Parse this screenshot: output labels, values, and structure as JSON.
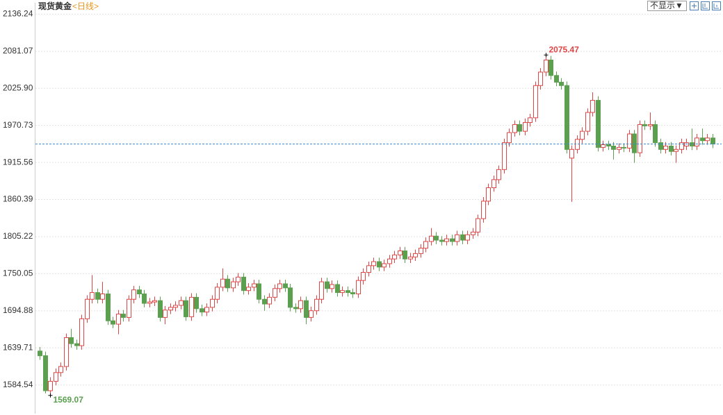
{
  "chart_data": {
    "type": "candlestick",
    "title": "现货黄金",
    "subtitle": "<日线>",
    "button": "不显示▼",
    "ylim": [
      1545,
      2148
    ],
    "yticks": [
      1584.54,
      1639.71,
      1694.88,
      1750.05,
      1805.22,
      1860.39,
      1915.56,
      1970.73,
      {
        "value": 2025.9,
        "label": "2025.90"
      },
      2081.07,
      2136.24
    ],
    "grid": true,
    "up_color": "#e04545",
    "down_color": "#5aa04f",
    "last_price": 1943,
    "annotations": [
      {
        "text": "2075.47",
        "index": 97,
        "value": 2075.47,
        "color": "#e04545"
      },
      {
        "text": "1569.07",
        "index": 2,
        "value": 1569.07,
        "color": "#5aa04f"
      }
    ],
    "open": [
      1635,
      1628,
      1576,
      1590,
      1603,
      1612,
      1655,
      1646,
      1643,
      1683,
      1712,
      1722,
      1712,
      1720,
      1680,
      1675,
      1690,
      1685,
      1712,
      1726,
      1720,
      1706,
      1708,
      1710,
      1685,
      1696,
      1700,
      1703,
      1710,
      1686,
      1715,
      1698,
      1693,
      1700,
      1712,
      1730,
      1742,
      1729,
      1738,
      1745,
      1725,
      1730,
      1735,
      1712,
      1705,
      1715,
      1728,
      1735,
      1729,
      1700,
      1698,
      1710,
      1685,
      1695,
      1712,
      1738,
      1728,
      1734,
      1722,
      1725,
      1722,
      1720,
      1740,
      1752,
      1762,
      1768,
      1760,
      1765,
      1772,
      1778,
      1784,
      1772,
      1775,
      1780,
      1788,
      1798,
      1806,
      1800,
      1798,
      1802,
      1798,
      1808,
      1800,
      1808,
      1812,
      1832,
      1858,
      1878,
      1890,
      1905,
      1945,
      1960,
      1972,
      1962,
      1975,
      1982,
      2030,
      2050,
      2068,
      2045,
      2035,
      2030,
      1922,
      1935,
      1950,
      1962,
      1990,
      2008,
      1938,
      1942,
      1940,
      1935,
      1938,
      1937,
      1958,
      1930,
      1972,
      1970,
      1972,
      1945,
      1935,
      1940,
      1932,
      1935,
      1940,
      1945,
      1940,
      1952,
      1948,
      1952
    ],
    "high": [
      1641,
      1634,
      1596,
      1609,
      1618,
      1661,
      1668,
      1652,
      1689,
      1718,
      1748,
      1728,
      1738,
      1726,
      1686,
      1696,
      1696,
      1718,
      1732,
      1732,
      1726,
      1714,
      1716,
      1716,
      1702,
      1706,
      1709,
      1716,
      1716,
      1721,
      1721,
      1704,
      1706,
      1718,
      1736,
      1758,
      1748,
      1744,
      1751,
      1751,
      1736,
      1741,
      1741,
      1718,
      1721,
      1734,
      1741,
      1741,
      1735,
      1706,
      1716,
      1716,
      1701,
      1718,
      1744,
      1744,
      1740,
      1740,
      1731,
      1731,
      1728,
      1746,
      1758,
      1768,
      1774,
      1774,
      1771,
      1778,
      1784,
      1790,
      1790,
      1781,
      1786,
      1794,
      1804,
      1818,
      1812,
      1806,
      1808,
      1808,
      1814,
      1814,
      1814,
      1818,
      1838,
      1864,
      1884,
      1896,
      1911,
      1951,
      1966,
      1978,
      1978,
      1981,
      1988,
      2036,
      2056,
      2075.47,
      2074,
      2051,
      2041,
      2036,
      1941,
      1956,
      1968,
      1996,
      2020,
      2014,
      1948,
      1948,
      1946,
      1944,
      1944,
      1964,
      1964,
      1978,
      1978,
      1990,
      1978,
      1951,
      1946,
      1946,
      1941,
      1951,
      1951,
      1966,
      1958,
      1966,
      1958,
      1958
    ],
    "low": [
      1622,
      1572,
      1569.07,
      1584,
      1597,
      1606,
      1640,
      1637,
      1637,
      1677,
      1706,
      1706,
      1706,
      1674,
      1669,
      1660,
      1679,
      1679,
      1706,
      1714,
      1700,
      1700,
      1702,
      1679,
      1675,
      1690,
      1694,
      1697,
      1680,
      1680,
      1692,
      1687,
      1687,
      1694,
      1706,
      1724,
      1723,
      1723,
      1732,
      1719,
      1719,
      1724,
      1706,
      1695,
      1699,
      1709,
      1722,
      1723,
      1694,
      1692,
      1692,
      1675,
      1679,
      1689,
      1706,
      1722,
      1722,
      1716,
      1716,
      1716,
      1714,
      1714,
      1734,
      1746,
      1756,
      1754,
      1754,
      1759,
      1766,
      1772,
      1766,
      1766,
      1769,
      1774,
      1782,
      1792,
      1794,
      1792,
      1792,
      1792,
      1792,
      1794,
      1794,
      1802,
      1806,
      1826,
      1852,
      1872,
      1884,
      1899,
      1939,
      1954,
      1956,
      1956,
      1969,
      1976,
      2024,
      2044,
      2039,
      2029,
      2024,
      1929,
      1857,
      1929,
      1944,
      1956,
      1984,
      1932,
      1932,
      1934,
      1920,
      1929,
      1931,
      1931,
      1915,
      1924,
      1964,
      1964,
      1939,
      1929,
      1929,
      1926,
      1915,
      1929,
      1934,
      1934,
      1934,
      1942,
      1942,
      1937
    ],
    "close": [
      1628,
      1576,
      1590,
      1603,
      1612,
      1655,
      1646,
      1643,
      1683,
      1712,
      1722,
      1712,
      1720,
      1680,
      1675,
      1690,
      1685,
      1712,
      1726,
      1720,
      1706,
      1708,
      1710,
      1685,
      1696,
      1700,
      1703,
      1710,
      1686,
      1715,
      1698,
      1693,
      1700,
      1712,
      1730,
      1742,
      1729,
      1738,
      1745,
      1725,
      1730,
      1735,
      1712,
      1705,
      1715,
      1728,
      1735,
      1729,
      1700,
      1698,
      1710,
      1685,
      1695,
      1712,
      1738,
      1728,
      1734,
      1722,
      1725,
      1722,
      1720,
      1740,
      1752,
      1762,
      1768,
      1760,
      1765,
      1772,
      1778,
      1784,
      1772,
      1775,
      1780,
      1788,
      1798,
      1806,
      1800,
      1798,
      1802,
      1798,
      1808,
      1800,
      1808,
      1812,
      1832,
      1858,
      1878,
      1890,
      1905,
      1945,
      1960,
      1972,
      1962,
      1975,
      1982,
      2030,
      2050,
      2068,
      2045,
      2035,
      2030,
      1935,
      1935,
      1950,
      1962,
      1990,
      2008,
      1938,
      1942,
      1940,
      1935,
      1938,
      1937,
      1958,
      1930,
      1972,
      1970,
      1972,
      1945,
      1935,
      1940,
      1932,
      1935,
      1945,
      1945,
      1940,
      1952,
      1948,
      1952,
      1943
    ]
  }
}
